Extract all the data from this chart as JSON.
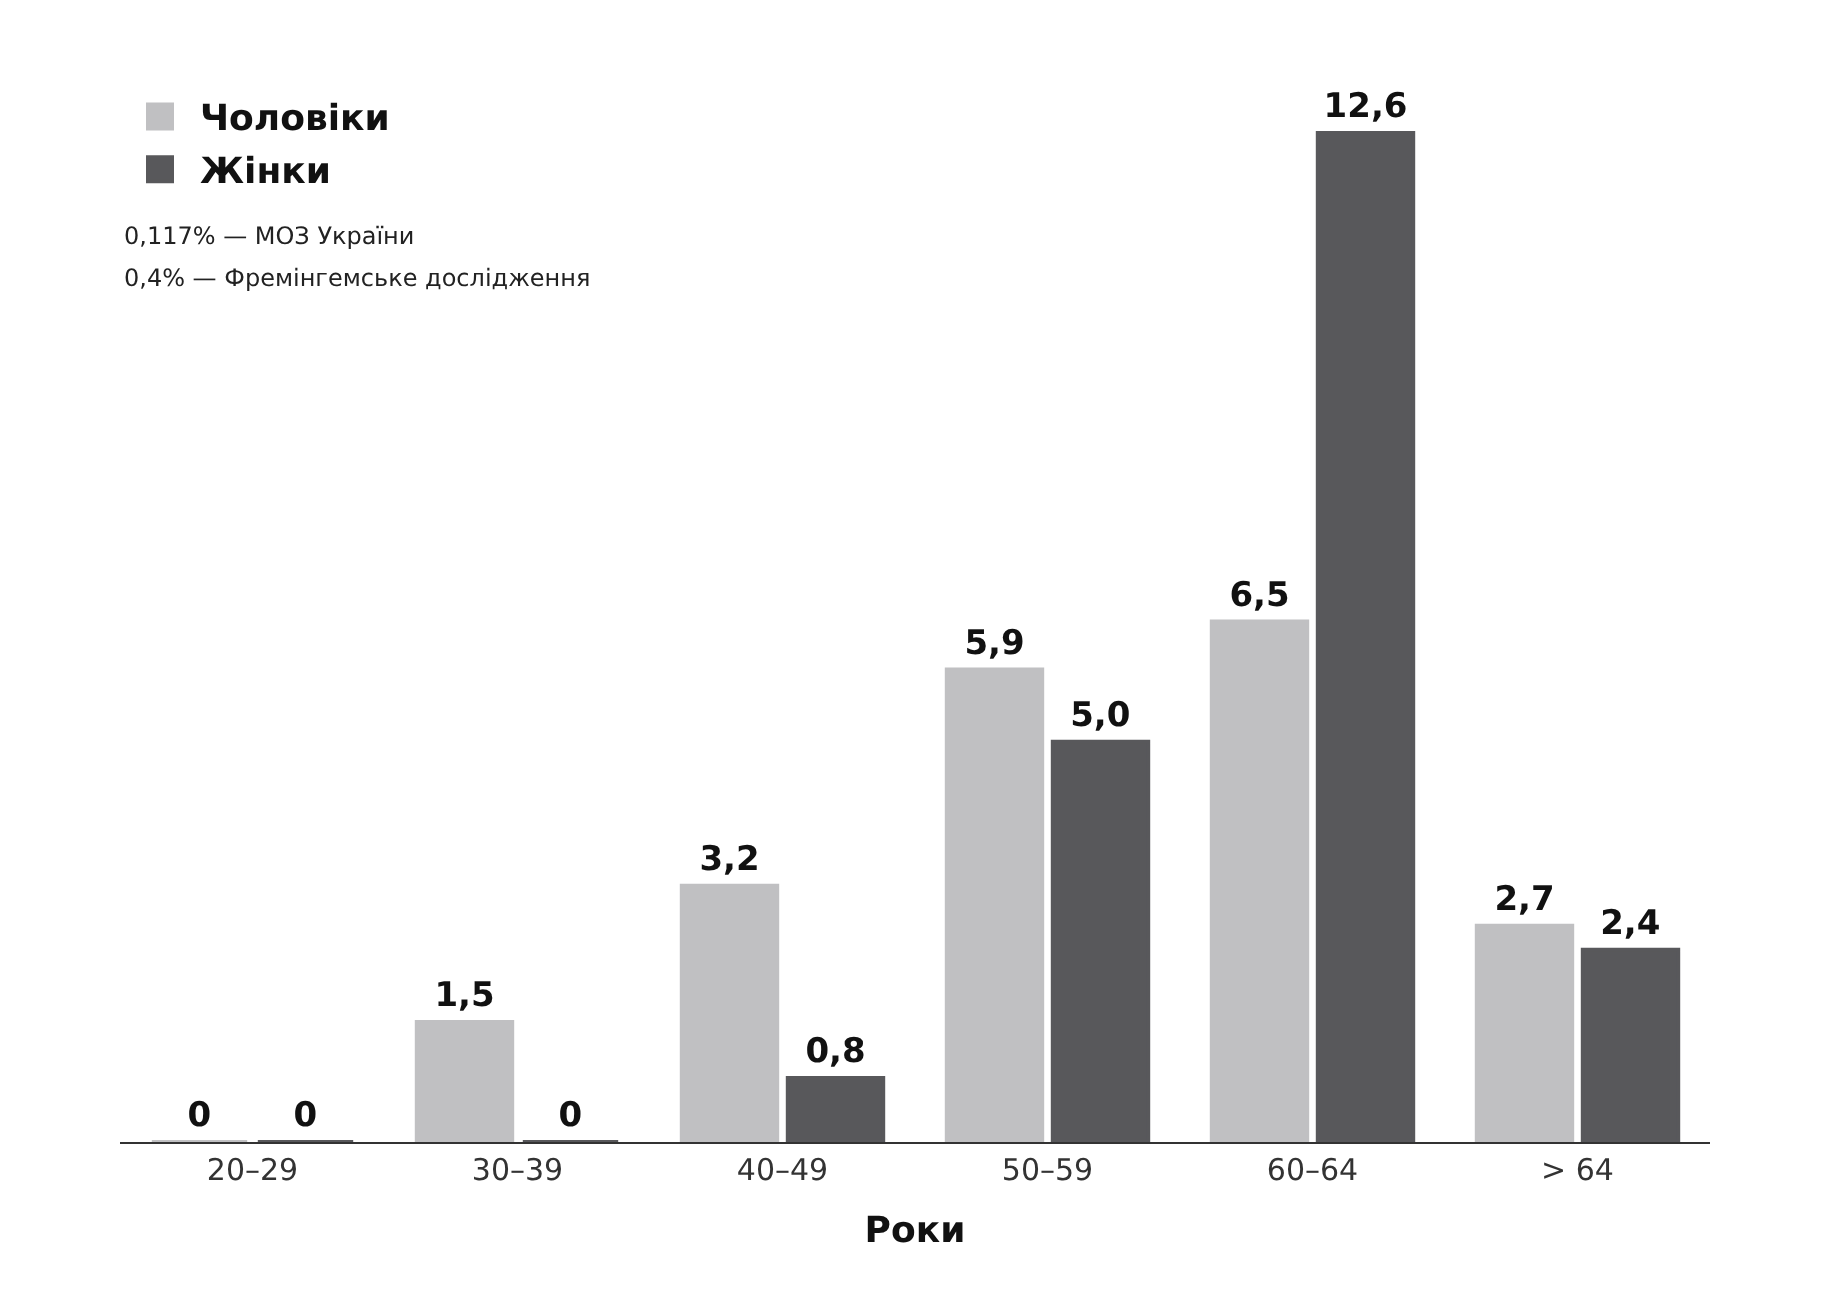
{
  "chart_data": {
    "type": "bar",
    "xlabel": "Роки",
    "categories": [
      "20–29",
      "30–39",
      "40–49",
      "50–59",
      "60–64",
      "> 64"
    ],
    "series": [
      {
        "name": "Чоловіки",
        "color": "#c0c0c2",
        "values": [
          0,
          1.5,
          3.2,
          5.9,
          6.5,
          2.7
        ],
        "value_labels": [
          "0",
          "1,5",
          "3,2",
          "5,9",
          "6,5",
          "2,7"
        ]
      },
      {
        "name": "Жінки",
        "color": "#58585b",
        "values": [
          0,
          0,
          0.8,
          5.0,
          12.6,
          2.4
        ],
        "value_labels": [
          "0",
          "0",
          "0,8",
          "5,0",
          "12,6",
          "2,4"
        ]
      }
    ],
    "annotations": [
      "0,117% — МОЗ України",
      "0,4% — Фремінгемське дослідження"
    ],
    "legend": "top left"
  }
}
